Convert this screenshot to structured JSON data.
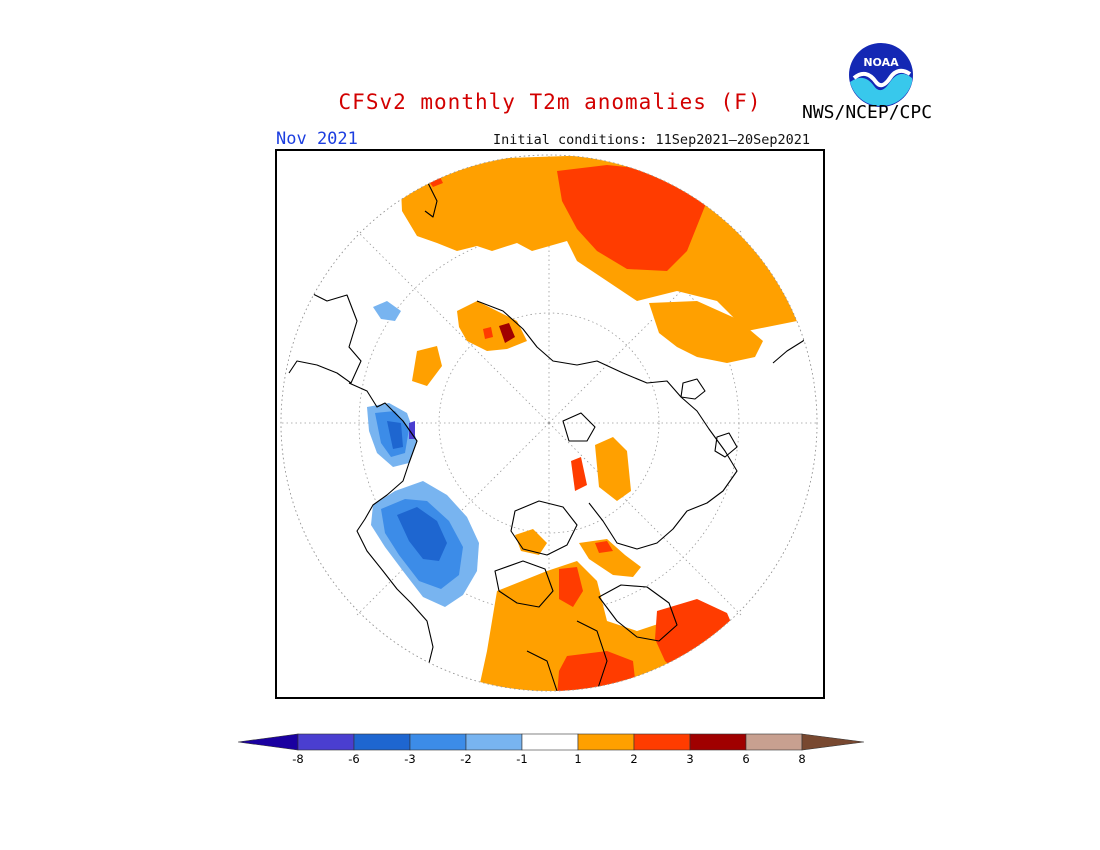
{
  "header": {
    "title": "CFSv2 monthly T2m anomalies (F)",
    "month": "Nov 2021",
    "initial_conditions": "Initial conditions: 11Sep2021—20Sep2021",
    "agency": "NWS/NCEP/CPC",
    "logo_text": "NOAA"
  },
  "colors": {
    "title": "#d20000",
    "month": "#1c3ee0",
    "c_lt_m8": "#1a00a0",
    "c_m8_m6": "#4a3ed0",
    "c_m6_m3": "#1e66d0",
    "c_m3_m2": "#3c8ce8",
    "c_m2_m1": "#78b4f0",
    "c_neutral": "#ffffff",
    "c_1_2": "#ffa000",
    "c_2_3": "#ff3c00",
    "c_3_6": "#a00000",
    "c_6_8": "#c8a090",
    "c_gt_8": "#784830"
  },
  "legend": {
    "ticks": [
      "-8",
      "-6",
      "-3",
      "-2",
      "-1",
      "1",
      "2",
      "3",
      "6",
      "8"
    ]
  },
  "map": {
    "projection": "north polar stereographic",
    "regions": [
      {
        "name": "eastern-russia-siberia",
        "anomaly": "1 to 3"
      },
      {
        "name": "northern-europe-scandinavia",
        "anomaly": "1 to 3"
      },
      {
        "name": "northeastern-canada-greenland-coast",
        "anomaly": "1 to 3"
      },
      {
        "name": "western-canada-pacific-northwest",
        "anomaly": "-6 to -1"
      },
      {
        "name": "alaska-eastern-siberia-coast",
        "anomaly": "1 to 3"
      }
    ]
  }
}
